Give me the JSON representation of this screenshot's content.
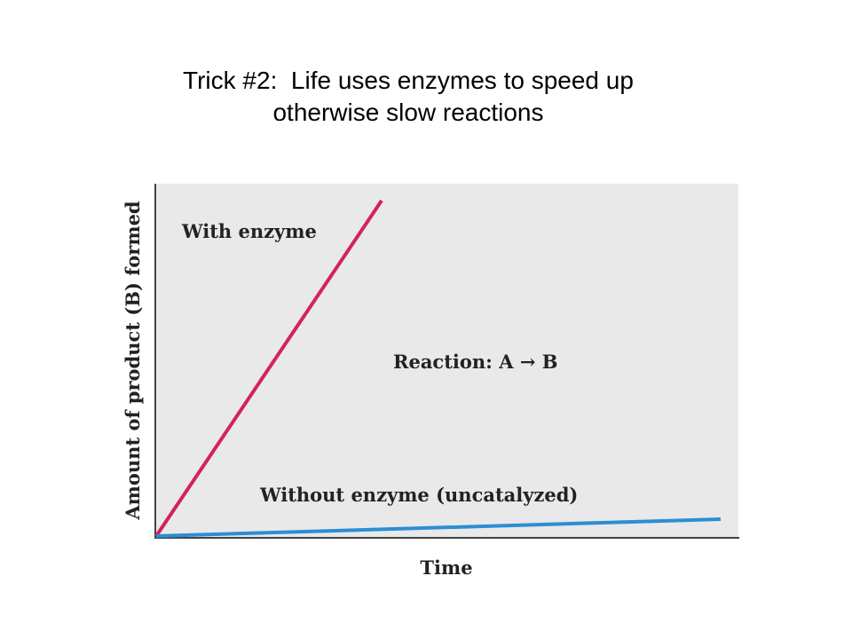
{
  "slide": {
    "title_lines": [
      "Trick #2:  Life uses enzymes to speed up",
      "otherwise slow reactions"
    ],
    "diagram": {
      "y_axis_label": "Amount of product (B) formed",
      "x_axis_label": "Time",
      "curve_labels": [
        "With enzyme",
        "Without enzyme (uncatalyzed)"
      ],
      "annotation": "Reaction: A → B"
    }
  }
}
